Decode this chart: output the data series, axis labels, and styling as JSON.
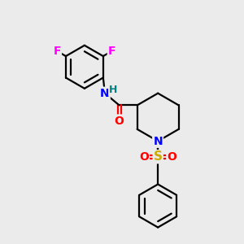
{
  "bg_color": "#ebebeb",
  "atom_colors": {
    "C": "#000000",
    "N": "#0000ff",
    "O": "#ff0000",
    "S": "#ccaa00",
    "F": "#ff00ff",
    "H": "#008080"
  },
  "bond_color": "#000000",
  "bond_width": 1.6,
  "font_size_atom": 10
}
